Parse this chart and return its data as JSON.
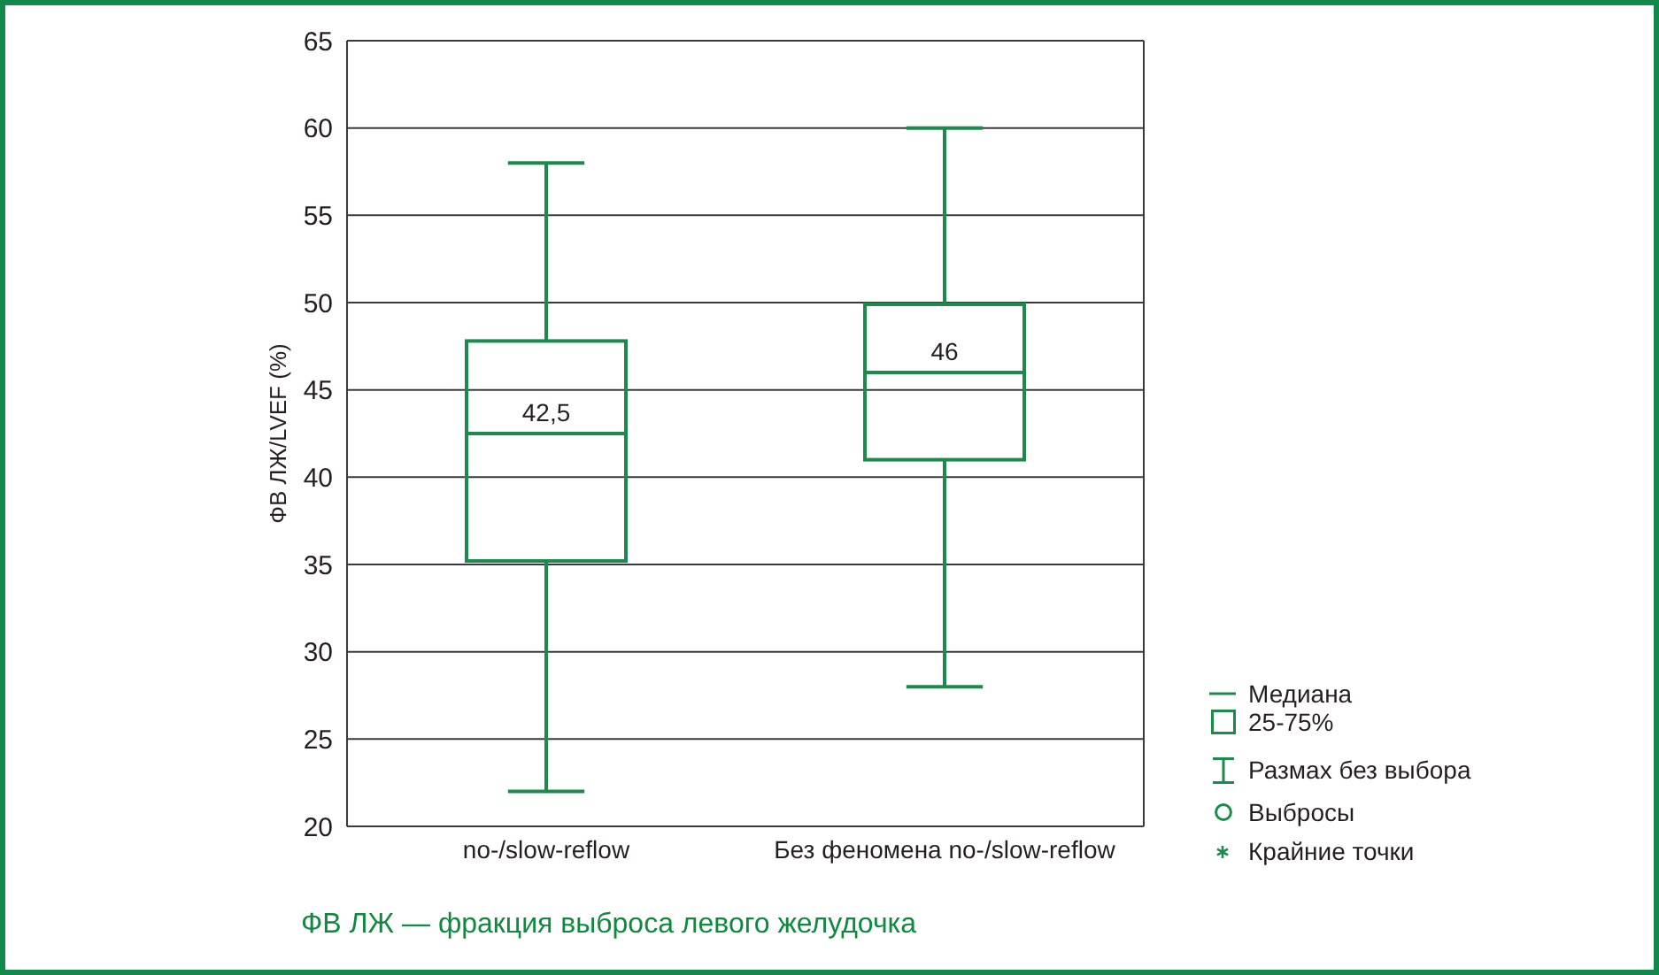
{
  "chart_data": {
    "type": "box",
    "ylabel": "ФВ ЛЖ/LVEF (%)",
    "categories": [
      "no-/slow-reflow",
      "Без феномена no-/slow-reflow"
    ],
    "boxes": [
      {
        "low": 22,
        "q1": 35.2,
        "median": 42.5,
        "q3": 47.8,
        "high": 58
      },
      {
        "low": 28,
        "q1": 41,
        "median": 46,
        "q3": 49.9,
        "high": 60
      }
    ],
    "value_labels": [
      "42,5",
      "46"
    ],
    "color": "#1b8a4c",
    "ylim": [
      20,
      65
    ],
    "yticks": [
      20,
      25,
      30,
      35,
      40,
      45,
      50,
      55,
      60,
      65
    ],
    "grid": "y",
    "annotations": [
      "Медиана",
      "25-75%",
      "Размах без выбора",
      "Выбросы",
      "Крайние точки",
      "ФВ ЛЖ — фракция выброса левого желудочка"
    ]
  }
}
